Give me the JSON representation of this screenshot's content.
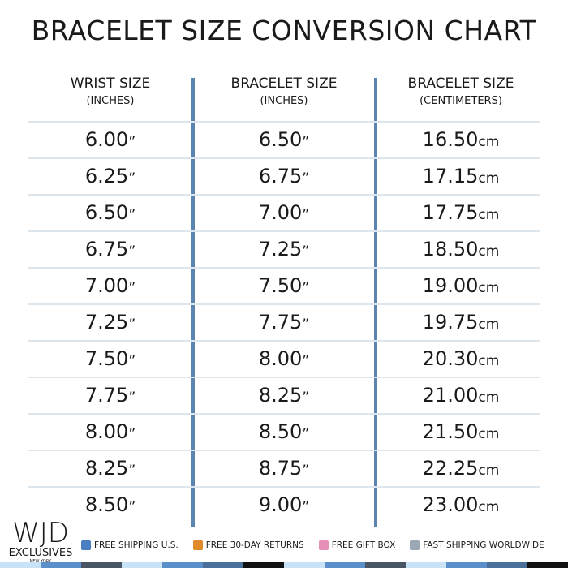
{
  "title": "BRACELET SIZE CONVERSION CHART",
  "headers": [
    {
      "label": "WRIST SIZE",
      "sub": "(INCHES)"
    },
    {
      "label": "BRACELET SIZE",
      "sub": "(INCHES)"
    },
    {
      "label": "BRACELET SIZE",
      "sub": "(CENTIMETERS)"
    }
  ],
  "units": {
    "inch": "”",
    "cm": "cm"
  },
  "rows": [
    [
      "6.00",
      "6.50",
      "16.50"
    ],
    [
      "6.25",
      "6.75",
      "17.15"
    ],
    [
      "6.50",
      "7.00",
      "17.75"
    ],
    [
      "6.75",
      "7.25",
      "18.50"
    ],
    [
      "7.00",
      "7.50",
      "19.00"
    ],
    [
      "7.25",
      "7.75",
      "19.75"
    ],
    [
      "7.50",
      "8.00",
      "20.30"
    ],
    [
      "7.75",
      "8.25",
      "21.00"
    ],
    [
      "8.00",
      "8.50",
      "21.50"
    ],
    [
      "8.25",
      "8.75",
      "22.25"
    ],
    [
      "8.50",
      "9.00",
      "23.00"
    ]
  ],
  "logo": {
    "main": "WJD",
    "line2": "EXCLUSIVES",
    "line3": "NEW YORK"
  },
  "features": [
    {
      "icon": "mailbox-icon",
      "label": "FREE SHIPPING U.S.",
      "color": "#4a7fc1"
    },
    {
      "icon": "gift-icon",
      "label": "FREE 30-DAY RETURNS",
      "color": "#e08a2a"
    },
    {
      "icon": "gift-heart-icon",
      "label": "FREE GIFT BOX",
      "color": "#e88fb8"
    },
    {
      "icon": "airplane-icon",
      "label": "FAST SHIPPING WORLDWIDE",
      "color": "#9aa8b5"
    }
  ],
  "colors": {
    "accent": "#5b84b1",
    "rule": "#dde6ec"
  },
  "strip": [
    "#c7e3f5",
    "#5b8fc9",
    "#4a5563",
    "#c7e3f5",
    "#5b8fc9",
    "#4a6f9a",
    "#111111",
    "#c7e3f5",
    "#5b8fc9",
    "#4a5563",
    "#c7e3f5",
    "#5b8fc9",
    "#4a6f9a",
    "#111111"
  ]
}
